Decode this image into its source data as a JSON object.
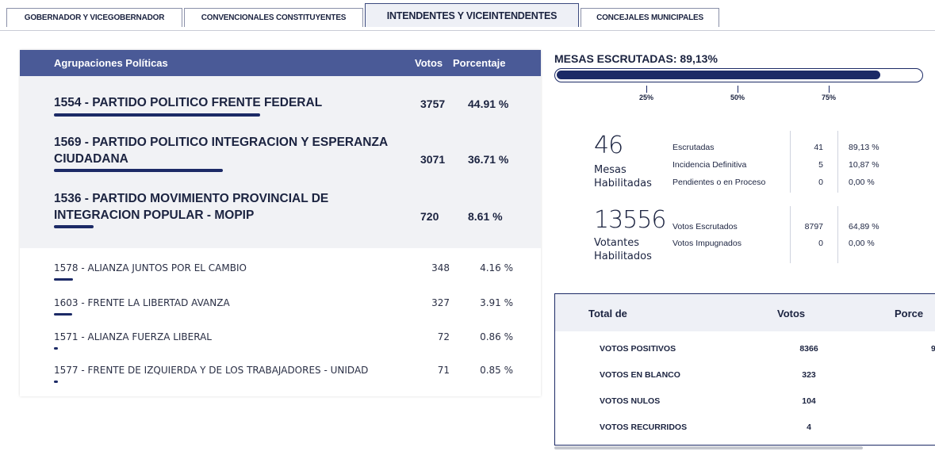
{
  "tabs": [
    {
      "label": "GOBERNADOR Y VICEGOBERNADOR"
    },
    {
      "label": "CONVENCIONALES CONSTITUYENTES"
    },
    {
      "label": "INTENDENTES Y VICEINTENDENTES"
    },
    {
      "label": "CONCEJALES MUNICIPALES"
    }
  ],
  "active_tab": "INTENDENTES Y VICEINTENDENTES",
  "results": {
    "header": {
      "party": "Agrupaciones Políticas",
      "votes": "Votos",
      "percent": "Porcentaje"
    },
    "top_parties": [
      {
        "name": "1554 - PARTIDO POLITICO FRENTE FEDERAL",
        "votes": "3757",
        "percent": "44.91 %",
        "share": 44.91
      },
      {
        "name": "1569 - PARTIDO POLITICO INTEGRACION Y ESPERANZA CIUDADANA",
        "votes": "3071",
        "percent": "36.71 %",
        "share": 36.71
      },
      {
        "name": "1536 - PARTIDO MOVIMIENTO PROVINCIAL DE INTEGRACION POPULAR - MOPIP",
        "votes": "720",
        "percent": "8.61 %",
        "share": 8.61
      }
    ],
    "other_parties": [
      {
        "name": "1578 - ALIANZA JUNTOS POR EL CAMBIO",
        "votes": "348",
        "percent": "4.16 %",
        "share": 4.16
      },
      {
        "name": "1603 - FRENTE LA LIBERTAD AVANZA",
        "votes": "327",
        "percent": "3.91 %",
        "share": 3.91
      },
      {
        "name": "1571 - ALIANZA FUERZA LIBERAL",
        "votes": "72",
        "percent": "0.86 %",
        "share": 0.86
      },
      {
        "name": "1577 - FRENTE DE IZQUIERDA Y DE LOS TRABAJADORES - UNIDAD",
        "votes": "71",
        "percent": "0.85 %",
        "share": 0.85
      }
    ]
  },
  "mesas": {
    "title": "MESAS ESCRUTADAS: 89,13%",
    "progress": 89.13,
    "ticks": [
      "25%",
      "50%",
      "75%"
    ]
  },
  "mesas_stats": {
    "count": "46",
    "label_line1": "Mesas",
    "label_line2": "Habilitadas",
    "rows": [
      {
        "label": "Escrutadas",
        "value": "41",
        "percent": "89,13 %"
      },
      {
        "label": "Incidencia Definitiva",
        "value": "5",
        "percent": "10,87 %"
      },
      {
        "label": "Pendientes o en Proceso",
        "value": "0",
        "percent": "0,00 %"
      }
    ]
  },
  "votantes_stats": {
    "count": "13556",
    "label_line1": "Votantes",
    "label_line2": "Habilitados",
    "rows": [
      {
        "label": "Votos Escrutados",
        "value": "8797",
        "percent": "64,89 %"
      },
      {
        "label": "Votos Impugnados",
        "value": "0",
        "percent": "0,00 %"
      }
    ]
  },
  "totals": {
    "header": {
      "label": "Total de",
      "votes": "Votos",
      "percent": "Porce"
    },
    "rows": [
      {
        "label": "VOTOS POSITIVOS",
        "votes": "8366",
        "percent": "9"
      },
      {
        "label": "VOTOS EN BLANCO",
        "votes": "323",
        "percent": ""
      },
      {
        "label": "VOTOS NULOS",
        "votes": "104",
        "percent": ""
      },
      {
        "label": "VOTOS RECURRIDOS",
        "votes": "4",
        "percent": ""
      }
    ]
  },
  "colors": {
    "accent": "#4a5a97",
    "bar": "#1c2a66",
    "panel_bg": "#f1f2f5"
  }
}
